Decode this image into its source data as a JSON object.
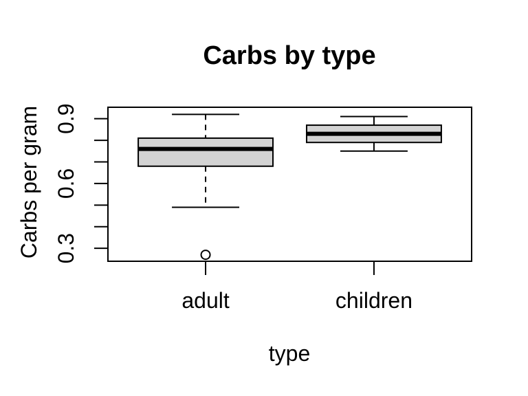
{
  "page": {
    "background": "#ffffff"
  },
  "chart_data": {
    "type": "boxplot",
    "title": "Carbs by type",
    "xlabel": "type",
    "ylabel": "Carbs per gram",
    "categories": [
      "adult",
      "children"
    ],
    "series": [
      {
        "name": "adult",
        "lower_whisker": 0.49,
        "q1": 0.68,
        "median": 0.76,
        "q3": 0.81,
        "upper_whisker": 0.92,
        "outliers": [
          0.27
        ]
      },
      {
        "name": "children",
        "lower_whisker": 0.75,
        "q1": 0.79,
        "median": 0.83,
        "q3": 0.87,
        "upper_whisker": 0.91,
        "outliers": []
      }
    ],
    "ylim": [
      0.24,
      0.953
    ],
    "xlim": [
      0.42,
      2.58
    ],
    "yticks": [
      0.3,
      0.4,
      0.5,
      0.6,
      0.7,
      0.8,
      0.9
    ],
    "ytick_labels": [
      "0.9",
      "0.6",
      "0.3"
    ],
    "ytick_label_values": [
      0.9,
      0.6,
      0.3
    ],
    "grid": false,
    "legend": "none",
    "colors": {
      "stroke": "#000000",
      "box_fill": "#d3d3d3",
      "outlier_fill": "#ffffff",
      "background": "#ffffff"
    }
  }
}
